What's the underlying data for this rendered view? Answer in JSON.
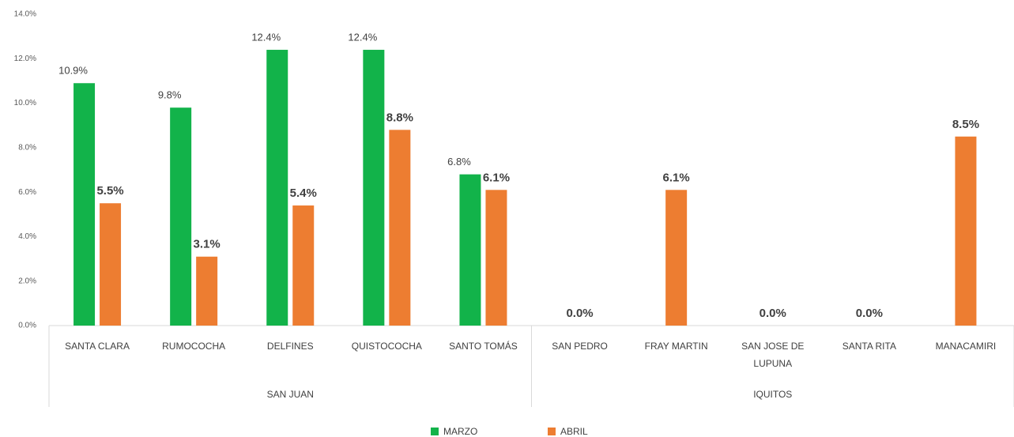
{
  "chart_data": {
    "type": "bar",
    "groups": [
      {
        "name": "SAN JUAN",
        "categories": [
          "SANTA CLARA",
          "RUMOCOCHA",
          "DELFINES",
          "QUISTOCOCHA",
          "SANTO TOMÁS"
        ]
      },
      {
        "name": "IQUITOS",
        "categories": [
          "SAN PEDRO",
          "FRAY MARTIN",
          "SAN JOSE DE LUPUNA",
          "SANTA RITA",
          "MANACAMIRI"
        ]
      }
    ],
    "series": [
      {
        "name": "MARZO",
        "color": "#12b34a",
        "values": [
          10.9,
          9.8,
          12.4,
          12.4,
          6.8,
          null,
          null,
          null,
          null,
          null
        ],
        "value_labels": [
          "10.9%",
          "9.8%",
          "12.4%",
          "12.4%",
          "6.8%",
          null,
          null,
          null,
          null,
          null
        ]
      },
      {
        "name": "ABRIL",
        "color": "#ed7d31",
        "values": [
          5.5,
          3.1,
          5.4,
          8.8,
          6.1,
          0.0,
          6.1,
          0.0,
          0.0,
          8.5
        ],
        "value_labels": [
          "5.5%",
          "3.1%",
          "5.4%",
          "8.8%",
          "6.1%",
          "0.0%",
          "6.1%",
          "0.0%",
          "0.0%",
          "8.5%"
        ]
      }
    ],
    "ylim": [
      0,
      14
    ],
    "yticks": [
      {
        "value": 0,
        "label": "0.0%"
      },
      {
        "value": 2,
        "label": "2.0%"
      },
      {
        "value": 4,
        "label": "4.0%"
      },
      {
        "value": 6,
        "label": "6.0%"
      },
      {
        "value": 8,
        "label": "8.0%"
      },
      {
        "value": 10,
        "label": "10.0%"
      },
      {
        "value": 12,
        "label": "12.0%"
      },
      {
        "value": 14,
        "label": "14.0%"
      }
    ],
    "grid": false,
    "legend": "bottom"
  }
}
